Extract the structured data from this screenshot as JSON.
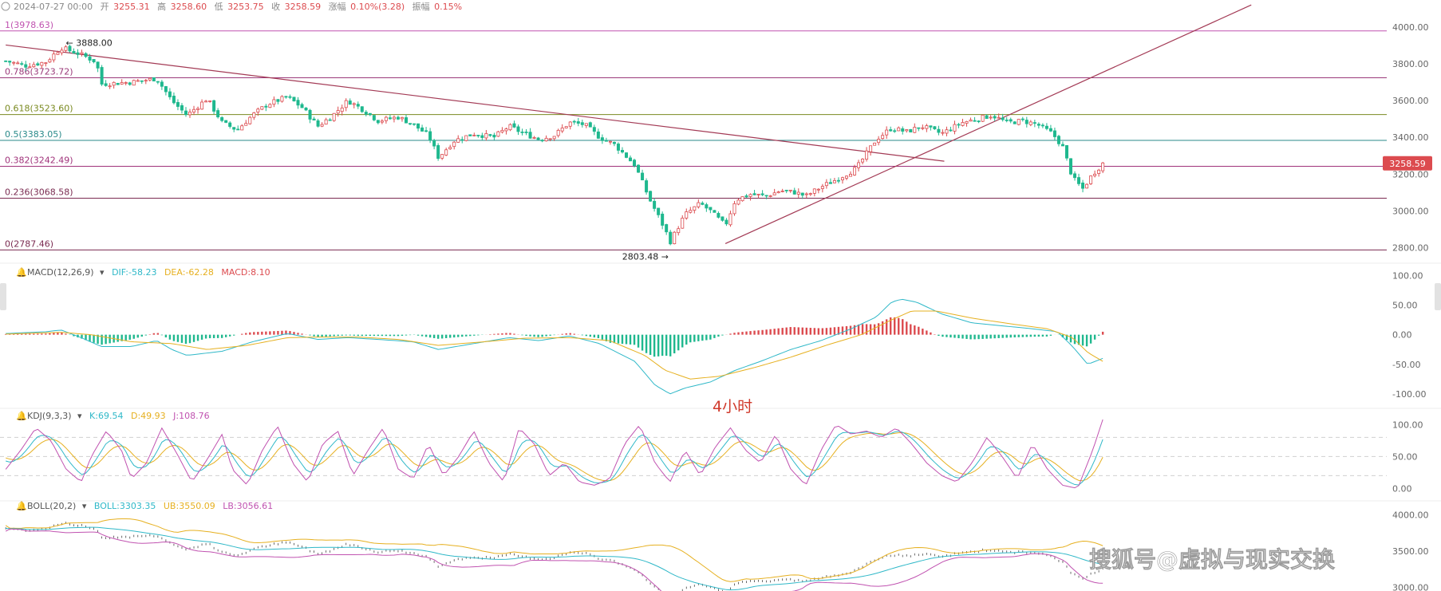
{
  "header": {
    "date": "2024-07-27 00:00",
    "open_label": "开",
    "open": "3255.31",
    "high_label": "高",
    "high": "3258.60",
    "low_label": "低",
    "low": "3253.75",
    "close_label": "收",
    "close": "3258.59",
    "change_label": "涨幅",
    "change": "0.10%(3.28)",
    "amp_label": "振幅",
    "amp": "0.15%"
  },
  "colors": {
    "up": "#dc4b4f",
    "down": "#1fb88e",
    "fib_line": "#a0327a",
    "trend_line": "#a33a55",
    "axis_text": "#666666",
    "dif": "#2fb8c8",
    "dea": "#e6b020",
    "macd_label": "#dc4b4f",
    "k": "#2fb8c8",
    "d": "#e6b020",
    "j": "#c052b0",
    "boll_mid": "#2fb8c8",
    "boll_up": "#e6b020",
    "boll_low": "#c052b0",
    "price_tag_bg": "#dc4b4f"
  },
  "annotation": {
    "timeframe": "4小时"
  },
  "watermark": "搜狐号@虚拟与现实交换",
  "price_tag": "3258.59",
  "chart_data": [
    {
      "type": "candlestick",
      "panel": "main",
      "ylim": [
        2750,
        4060
      ],
      "yticks": [
        {
          "v": 4000,
          "label": "4000.00"
        },
        {
          "v": 3800,
          "label": "3800.00"
        },
        {
          "v": 3600,
          "label": "3600.00"
        },
        {
          "v": 3400,
          "label": "3400.00"
        },
        {
          "v": 3200,
          "label": "3200.00"
        },
        {
          "v": 3000,
          "label": "3000.00"
        },
        {
          "v": 2800,
          "label": "2800.00"
        }
      ],
      "fib_levels": [
        {
          "v": 3978.63,
          "label": "1(3978.63)",
          "color": "#c052b0"
        },
        {
          "v": 3723.72,
          "label": "0.786(3723.72)",
          "color": "#9b3a7a"
        },
        {
          "v": 3523.6,
          "label": "0.618(3523.60)",
          "color": "#7a8a20"
        },
        {
          "v": 3383.05,
          "label": "0.5(3383.05)",
          "color": "#2a8a8a"
        },
        {
          "v": 3242.49,
          "label": "0.382(3242.49)",
          "color": "#a0327a"
        },
        {
          "v": 3068.58,
          "label": "0.236(3068.58)",
          "color": "#7a2a50"
        },
        {
          "v": 2787.46,
          "label": "0(2787.46)",
          "color": "#7a2a50"
        }
      ],
      "annotations": [
        {
          "label": "3888.00",
          "x_index": 22,
          "v": 3888.0
        },
        {
          "label": "2803.48",
          "x_index": 264,
          "v": 2803.48
        }
      ],
      "trend_lines": [
        {
          "from": [
            0,
            3902
          ],
          "to": [
            373,
            3270
          ]
        },
        {
          "from": [
            286,
            2822
          ],
          "to": [
            495,
            4120
          ]
        }
      ],
      "candle_count": 275,
      "anchors": [
        [
          0,
          3815
        ],
        [
          8,
          3790
        ],
        [
          16,
          3810
        ],
        [
          22,
          3888
        ],
        [
          30,
          3850
        ],
        [
          36,
          3810
        ],
        [
          38,
          3690
        ],
        [
          50,
          3700
        ],
        [
          60,
          3720
        ],
        [
          66,
          3600
        ],
        [
          72,
          3520
        ],
        [
          80,
          3610
        ],
        [
          86,
          3480
        ],
        [
          92,
          3440
        ],
        [
          98,
          3520
        ],
        [
          104,
          3580
        ],
        [
          112,
          3620
        ],
        [
          118,
          3560
        ],
        [
          124,
          3460
        ],
        [
          130,
          3520
        ],
        [
          136,
          3600
        ],
        [
          142,
          3550
        ],
        [
          148,
          3490
        ],
        [
          156,
          3510
        ],
        [
          162,
          3470
        ],
        [
          168,
          3410
        ],
        [
          172,
          3290
        ],
        [
          178,
          3380
        ],
        [
          186,
          3420
        ],
        [
          194,
          3400
        ],
        [
          200,
          3460
        ],
        [
          206,
          3420
        ],
        [
          212,
          3390
        ],
        [
          218,
          3410
        ],
        [
          224,
          3480
        ],
        [
          230,
          3470
        ],
        [
          236,
          3400
        ],
        [
          242,
          3360
        ],
        [
          250,
          3250
        ],
        [
          256,
          3060
        ],
        [
          262,
          2900
        ],
        [
          264,
          2830
        ],
        [
          270,
          2980
        ],
        [
          276,
          3040
        ],
        [
          280,
          3000
        ],
        [
          286,
          2920
        ],
        [
          290,
          3060
        ],
        [
          296,
          3090
        ],
        [
          302,
          3080
        ],
        [
          308,
          3110
        ],
        [
          314,
          3100
        ],
        [
          318,
          3080
        ],
        [
          324,
          3130
        ],
        [
          330,
          3170
        ],
        [
          338,
          3230
        ],
        [
          346,
          3390
        ],
        [
          352,
          3450
        ],
        [
          358,
          3430
        ],
        [
          364,
          3460
        ],
        [
          372,
          3420
        ],
        [
          380,
          3480
        ],
        [
          386,
          3500
        ],
        [
          392,
          3520
        ],
        [
          398,
          3480
        ],
        [
          404,
          3490
        ],
        [
          410,
          3470
        ],
        [
          416,
          3420
        ],
        [
          420,
          3350
        ],
        [
          424,
          3180
        ],
        [
          428,
          3120
        ],
        [
          432,
          3200
        ],
        [
          436,
          3258
        ]
      ],
      "current_price": 3258.59
    },
    {
      "type": "bar",
      "panel": "macd",
      "title": "MACD(12,26,9)",
      "legend": [
        {
          "name": "DIF",
          "value": "-58.23",
          "color": "#2fb8c8"
        },
        {
          "name": "DEA",
          "value": "-62.28",
          "color": "#e6b020"
        },
        {
          "name": "MACD",
          "value": "8.10",
          "color": "#dc4b4f"
        }
      ],
      "ylim": [
        -115,
        110
      ],
      "yticks": [
        {
          "v": 100,
          "label": "100.00"
        },
        {
          "v": 50,
          "label": "50.00"
        },
        {
          "v": 0,
          "label": "0.00"
        },
        {
          "v": -50,
          "label": "-50.00"
        },
        {
          "v": -100,
          "label": "-100.00"
        }
      ],
      "dif_anchors": [
        [
          0,
          2
        ],
        [
          16,
          5
        ],
        [
          22,
          8
        ],
        [
          30,
          -5
        ],
        [
          38,
          -20
        ],
        [
          50,
          -20
        ],
        [
          60,
          -10
        ],
        [
          66,
          -25
        ],
        [
          72,
          -35
        ],
        [
          86,
          -28
        ],
        [
          98,
          -12
        ],
        [
          112,
          2
        ],
        [
          124,
          -8
        ],
        [
          136,
          -5
        ],
        [
          148,
          -8
        ],
        [
          162,
          -12
        ],
        [
          172,
          -25
        ],
        [
          186,
          -15
        ],
        [
          200,
          -5
        ],
        [
          212,
          -10
        ],
        [
          224,
          -2
        ],
        [
          236,
          -15
        ],
        [
          250,
          -45
        ],
        [
          258,
          -85
        ],
        [
          264,
          -100
        ],
        [
          270,
          -90
        ],
        [
          280,
          -80
        ],
        [
          290,
          -60
        ],
        [
          300,
          -45
        ],
        [
          312,
          -25
        ],
        [
          324,
          -10
        ],
        [
          336,
          10
        ],
        [
          346,
          30
        ],
        [
          352,
          55
        ],
        [
          356,
          60
        ],
        [
          362,
          55
        ],
        [
          372,
          35
        ],
        [
          384,
          20
        ],
        [
          396,
          15
        ],
        [
          408,
          10
        ],
        [
          418,
          5
        ],
        [
          424,
          -20
        ],
        [
          430,
          -50
        ],
        [
          436,
          -40
        ]
      ],
      "dea_anchors": [
        [
          0,
          1
        ],
        [
          22,
          4
        ],
        [
          34,
          0
        ],
        [
          50,
          -12
        ],
        [
          66,
          -15
        ],
        [
          80,
          -25
        ],
        [
          96,
          -18
        ],
        [
          112,
          -5
        ],
        [
          124,
          -4
        ],
        [
          140,
          -4
        ],
        [
          156,
          -8
        ],
        [
          172,
          -18
        ],
        [
          190,
          -12
        ],
        [
          206,
          -6
        ],
        [
          224,
          -5
        ],
        [
          240,
          -10
        ],
        [
          254,
          -35
        ],
        [
          262,
          -60
        ],
        [
          272,
          -75
        ],
        [
          284,
          -70
        ],
        [
          298,
          -55
        ],
        [
          312,
          -38
        ],
        [
          326,
          -18
        ],
        [
          340,
          0
        ],
        [
          352,
          25
        ],
        [
          360,
          40
        ],
        [
          370,
          40
        ],
        [
          384,
          28
        ],
        [
          400,
          18
        ],
        [
          414,
          10
        ],
        [
          424,
          -5
        ],
        [
          430,
          -30
        ],
        [
          436,
          -45
        ]
      ]
    },
    {
      "type": "line",
      "panel": "kdj",
      "title": "KDJ(9,3,3)",
      "legend": [
        {
          "name": "K",
          "value": "69.54",
          "color": "#2fb8c8"
        },
        {
          "name": "D",
          "value": "49.93",
          "color": "#e6b020"
        },
        {
          "name": "J",
          "value": "108.76",
          "color": "#c052b0"
        }
      ],
      "ylim": [
        -12,
        118
      ],
      "yticks": [
        {
          "v": 100,
          "label": "100.00"
        },
        {
          "v": 50,
          "label": "50.00"
        },
        {
          "v": 0,
          "label": "0.00"
        }
      ],
      "dashed_levels": [
        80,
        50,
        20
      ],
      "j_anchors": [
        [
          0,
          30
        ],
        [
          6,
          60
        ],
        [
          12,
          95
        ],
        [
          18,
          75
        ],
        [
          24,
          30
        ],
        [
          30,
          10
        ],
        [
          34,
          50
        ],
        [
          40,
          90
        ],
        [
          46,
          60
        ],
        [
          50,
          15
        ],
        [
          56,
          40
        ],
        [
          62,
          95
        ],
        [
          68,
          55
        ],
        [
          74,
          10
        ],
        [
          80,
          45
        ],
        [
          86,
          85
        ],
        [
          90,
          30
        ],
        [
          96,
          5
        ],
        [
          102,
          60
        ],
        [
          108,
          98
        ],
        [
          114,
          40
        ],
        [
          120,
          10
        ],
        [
          126,
          70
        ],
        [
          132,
          90
        ],
        [
          138,
          20
        ],
        [
          144,
          60
        ],
        [
          150,
          95
        ],
        [
          156,
          30
        ],
        [
          162,
          15
        ],
        [
          168,
          70
        ],
        [
          174,
          20
        ],
        [
          180,
          50
        ],
        [
          186,
          90
        ],
        [
          192,
          40
        ],
        [
          198,
          10
        ],
        [
          204,
          95
        ],
        [
          210,
          70
        ],
        [
          216,
          20
        ],
        [
          222,
          40
        ],
        [
          228,
          10
        ],
        [
          234,
          5
        ],
        [
          240,
          15
        ],
        [
          246,
          70
        ],
        [
          252,
          100
        ],
        [
          258,
          40
        ],
        [
          264,
          10
        ],
        [
          270,
          60
        ],
        [
          276,
          20
        ],
        [
          282,
          65
        ],
        [
          288,
          95
        ],
        [
          294,
          60
        ],
        [
          300,
          40
        ],
        [
          306,
          85
        ],
        [
          312,
          30
        ],
        [
          318,
          5
        ],
        [
          324,
          60
        ],
        [
          330,
          100
        ],
        [
          336,
          85
        ],
        [
          342,
          90
        ],
        [
          348,
          80
        ],
        [
          354,
          95
        ],
        [
          360,
          70
        ],
        [
          366,
          40
        ],
        [
          372,
          20
        ],
        [
          378,
          10
        ],
        [
          384,
          40
        ],
        [
          390,
          80
        ],
        [
          396,
          50
        ],
        [
          402,
          15
        ],
        [
          408,
          70
        ],
        [
          414,
          30
        ],
        [
          420,
          5
        ],
        [
          426,
          0
        ],
        [
          432,
          60
        ],
        [
          436,
          108
        ]
      ]
    },
    {
      "type": "line",
      "panel": "boll",
      "title": "BOLL(20,2)",
      "legend": [
        {
          "name": "BOLL",
          "value": "3303.35",
          "color": "#2fb8c8"
        },
        {
          "name": "UB",
          "value": "3550.09",
          "color": "#e6b020"
        },
        {
          "name": "LB",
          "value": "3056.61",
          "color": "#c052b0"
        }
      ],
      "ylim": [
        2950,
        4150
      ],
      "yticks": [
        {
          "v": 4000,
          "label": "4000.00"
        },
        {
          "v": 3500,
          "label": "3500.00"
        },
        {
          "v": 3000,
          "label": "3000.00"
        }
      ]
    }
  ]
}
